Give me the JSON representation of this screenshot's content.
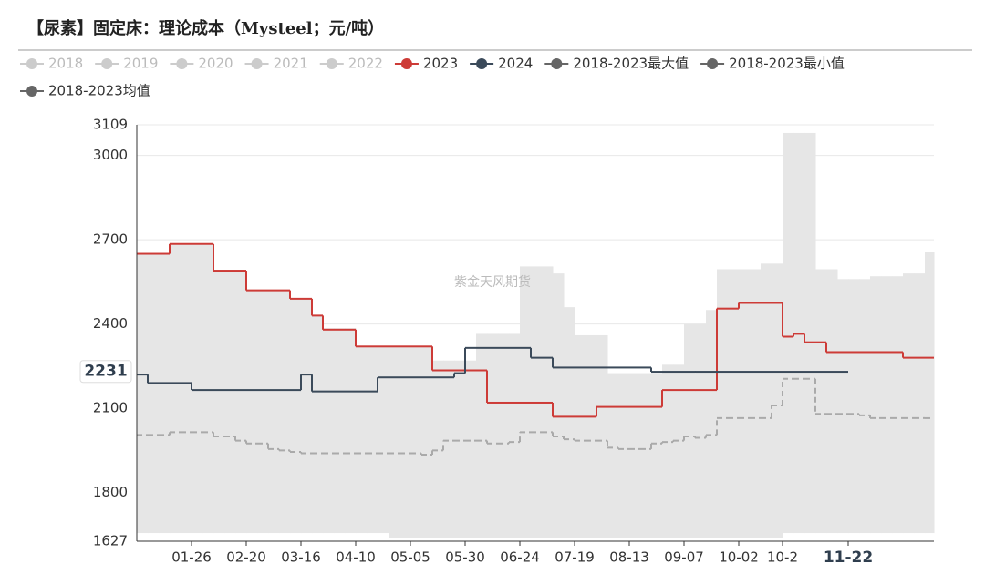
{
  "chart_data": {
    "type": "step-line",
    "title": "【尿素】固定床：理论成本（Mysteel；元/吨）",
    "watermark": "紫金天风期货",
    "categories": [
      null,
      null,
      null,
      null,
      null,
      "01-26",
      null,
      null,
      null,
      null,
      "02-20",
      null,
      null,
      null,
      null,
      "03-16",
      null,
      null,
      null,
      null,
      "04-10",
      null,
      null,
      null,
      null,
      "05-05",
      null,
      null,
      null,
      null,
      "05-30",
      null,
      null,
      null,
      null,
      "06-24",
      null,
      null,
      null,
      null,
      "07-19",
      null,
      null,
      null,
      null,
      "08-13",
      null,
      null,
      null,
      null,
      "09-07",
      null,
      null,
      null,
      null,
      "10-02",
      null,
      null,
      null,
      "10-2",
      null,
      null,
      null,
      null,
      null,
      "11-22",
      null,
      null,
      null,
      null,
      null,
      null,
      null
    ],
    "ylim": [
      1627,
      3109
    ],
    "yticks": [
      1627,
      1800,
      2100,
      2400,
      2700,
      3000,
      3109
    ],
    "grid": true,
    "axis_pointer": {
      "x_index": 65,
      "y": 2231
    },
    "band_color": "#e6e6e6",
    "series": [
      {
        "name": "2018",
        "color": "#cccccc",
        "visible": false
      },
      {
        "name": "2019",
        "color": "#cccccc",
        "visible": false
      },
      {
        "name": "2020",
        "color": "#cccccc",
        "visible": false
      },
      {
        "name": "2021",
        "color": "#cccccc",
        "visible": false
      },
      {
        "name": "2022",
        "color": "#cccccc",
        "visible": false
      },
      {
        "name": "2023",
        "color": "#cd3b37",
        "visible": true,
        "values": [
          2650,
          2650,
          2650,
          2685,
          2685,
          2685,
          2685,
          2590,
          2590,
          2590,
          2520,
          2520,
          2520,
          2520,
          2490,
          2490,
          2430,
          2380,
          2380,
          2380,
          2320,
          2320,
          2320,
          2320,
          2320,
          2320,
          2320,
          2235,
          2235,
          2235,
          2235,
          2235,
          2120,
          2120,
          2120,
          2120,
          2120,
          2120,
          2070,
          2070,
          2070,
          2070,
          2105,
          2105,
          2105,
          2105,
          2105,
          2105,
          2165,
          2165,
          2165,
          2165,
          2165,
          2455,
          2455,
          2475,
          2475,
          2475,
          2475,
          2355,
          2365,
          2335,
          2335,
          2300,
          2300,
          2300,
          2300,
          2300,
          2300,
          2300,
          2280,
          2280,
          2280
        ]
      },
      {
        "name": "2024",
        "color": "#3b4a5a",
        "visible": true,
        "values": [
          2220,
          2190,
          2190,
          2190,
          2190,
          2165,
          2165,
          2165,
          2165,
          2165,
          2165,
          2165,
          2165,
          2165,
          2165,
          2220,
          2160,
          2160,
          2160,
          2160,
          2160,
          2160,
          2210,
          2210,
          2210,
          2210,
          2210,
          2210,
          2210,
          2225,
          2315,
          2315,
          2315,
          2315,
          2315,
          2315,
          2280,
          2280,
          2245,
          2245,
          2245,
          2245,
          2245,
          2245,
          2245,
          2245,
          2245,
          2230,
          2230,
          2230,
          2230,
          2230,
          2230,
          2230,
          2230,
          2230,
          2230,
          2230,
          2230,
          2230,
          2230,
          2230,
          2230,
          2230,
          2230,
          2230,
          null,
          null,
          null,
          null,
          null,
          null,
          null
        ]
      },
      {
        "name": "2018-2023最大值",
        "color": "#666666",
        "visible": true,
        "band": "max",
        "values": [
          2650,
          2650,
          2650,
          2685,
          2685,
          2685,
          2685,
          2590,
          2590,
          2590,
          2520,
          2520,
          2520,
          2520,
          2490,
          2490,
          2430,
          2385,
          2385,
          2385,
          2320,
          2320,
          2320,
          2320,
          2320,
          2320,
          2320,
          2270,
          2270,
          2270,
          2270,
          2365,
          2365,
          2365,
          2365,
          2605,
          2605,
          2605,
          2580,
          2460,
          2360,
          2360,
          2360,
          2225,
          2225,
          2225,
          2225,
          2225,
          2255,
          2255,
          2400,
          2400,
          2450,
          2595,
          2595,
          2595,
          2595,
          2615,
          2615,
          3080,
          3080,
          3080,
          2595,
          2595,
          2560,
          2560,
          2560,
          2570,
          2570,
          2570,
          2580,
          2580,
          2655
        ]
      },
      {
        "name": "2018-2023最小值",
        "color": "#666666",
        "visible": true,
        "band": "min",
        "values": [
          1656,
          1656,
          1656,
          1656,
          1656,
          1656,
          1656,
          1656,
          1656,
          1656,
          1656,
          1656,
          1656,
          1656,
          1656,
          1656,
          1656,
          1656,
          1656,
          1656,
          1656,
          1656,
          1656,
          1640,
          1640,
          1640,
          1640,
          1640,
          1640,
          1640,
          1640,
          1640,
          1640,
          1640,
          1640,
          1640,
          1640,
          1640,
          1640,
          1640,
          1640,
          1640,
          1640,
          1640,
          1640,
          1640,
          1640,
          1640,
          1640,
          1640,
          1640,
          1640,
          1640,
          1640,
          1640,
          1640,
          1640,
          1640,
          1640,
          1656,
          1656,
          1656,
          1656,
          1656,
          1656,
          1656,
          1656,
          1656,
          1656,
          1656,
          1656,
          1656,
          1656
        ]
      },
      {
        "name": "2018-2023均值",
        "color": "#666666",
        "visible": true,
        "line_color": "#aaaaaa",
        "line_style": "dashed",
        "values": [
          2005,
          2005,
          2005,
          2015,
          2015,
          2015,
          2015,
          2000,
          2000,
          1985,
          1975,
          1975,
          1955,
          1950,
          1945,
          1940,
          1940,
          1940,
          1940,
          1940,
          1940,
          1940,
          1940,
          1940,
          1940,
          1940,
          1935,
          1950,
          1985,
          1985,
          1985,
          1985,
          1975,
          1975,
          1980,
          2015,
          2015,
          2015,
          2000,
          1990,
          1985,
          1985,
          1985,
          1960,
          1955,
          1955,
          1955,
          1975,
          1980,
          1985,
          2000,
          1995,
          2005,
          2065,
          2065,
          2065,
          2065,
          2065,
          2110,
          2205,
          2205,
          2205,
          2080,
          2080,
          2080,
          2080,
          2075,
          2065,
          2065,
          2065,
          2065,
          2065,
          2065
        ]
      }
    ]
  }
}
